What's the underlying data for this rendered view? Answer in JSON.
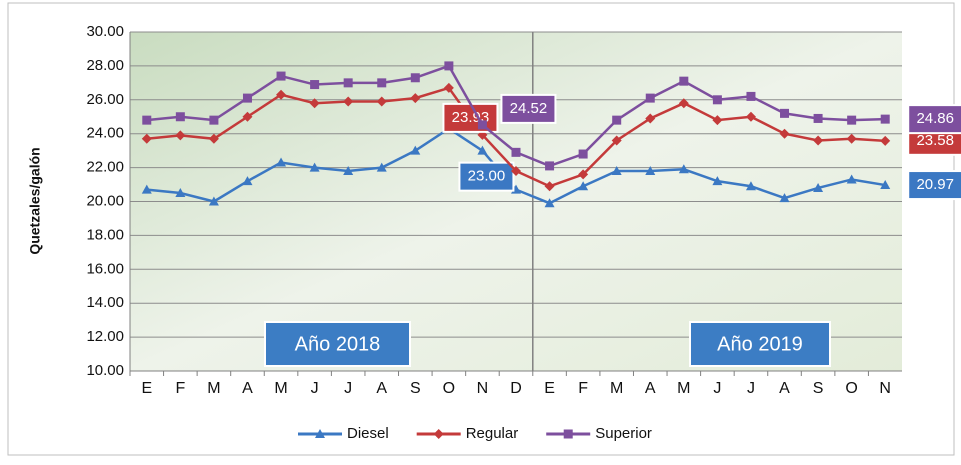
{
  "chart_data": {
    "type": "line",
    "y_label": "Quetzales/galón",
    "categories": [
      "E",
      "F",
      "M",
      "A",
      "M",
      "J",
      "J",
      "A",
      "S",
      "O",
      "N",
      "D",
      "E",
      "F",
      "M",
      "A",
      "M",
      "J",
      "J",
      "A",
      "S",
      "O",
      "N"
    ],
    "series": [
      {
        "name": "Diesel",
        "color": "#3b78c3",
        "marker": "triangle",
        "values": [
          20.7,
          20.5,
          20.0,
          21.2,
          22.3,
          22.0,
          21.8,
          22.0,
          23.0,
          24.3,
          23.0,
          20.7,
          19.9,
          20.9,
          21.8,
          21.8,
          21.9,
          21.2,
          20.9,
          20.2,
          20.8,
          21.3,
          20.97
        ],
        "value_labels": [
          null,
          null,
          null,
          null,
          null,
          null,
          null,
          null,
          null,
          null,
          "23.00",
          null,
          null,
          null,
          null,
          null,
          null,
          null,
          null,
          null,
          null,
          null,
          "20.97"
        ]
      },
      {
        "name": "Regular",
        "color": "#c43a3a",
        "marker": "diamond",
        "values": [
          23.7,
          23.9,
          23.7,
          25.0,
          26.3,
          25.8,
          25.9,
          25.9,
          26.1,
          26.7,
          23.93,
          21.8,
          20.9,
          21.6,
          23.6,
          24.9,
          25.8,
          24.8,
          25.0,
          24.0,
          23.6,
          23.7,
          23.58
        ],
        "value_labels": [
          null,
          null,
          null,
          null,
          null,
          null,
          null,
          null,
          null,
          null,
          "23.93",
          null,
          null,
          null,
          null,
          null,
          null,
          null,
          null,
          null,
          null,
          null,
          "23.58"
        ]
      },
      {
        "name": "Superior",
        "color": "#7d4f9e",
        "marker": "square",
        "values": [
          24.8,
          25.0,
          24.8,
          26.1,
          27.4,
          26.9,
          27.0,
          27.0,
          27.3,
          28.0,
          24.52,
          22.9,
          22.1,
          22.8,
          24.8,
          26.1,
          27.1,
          26.0,
          26.2,
          25.2,
          24.9,
          24.8,
          24.86
        ],
        "value_labels": [
          null,
          null,
          null,
          null,
          null,
          null,
          null,
          null,
          null,
          null,
          "24.52",
          null,
          null,
          null,
          null,
          null,
          null,
          null,
          null,
          null,
          null,
          null,
          "24.86"
        ]
      }
    ],
    "annotations": [
      "Año 2018",
      "Año 2019"
    ],
    "ylim": [
      10,
      30
    ],
    "yticks": [
      {
        "value": 10,
        "label": "10.00"
      },
      {
        "value": 12,
        "label": "12.00"
      },
      {
        "value": 14,
        "label": "14.00"
      },
      {
        "value": 16,
        "label": "16.00"
      },
      {
        "value": 18,
        "label": "18.00"
      },
      {
        "value": 20,
        "label": "20.00"
      },
      {
        "value": 22,
        "label": "22.00"
      },
      {
        "value": 24,
        "label": "24.00"
      },
      {
        "value": 26,
        "label": "26.00"
      },
      {
        "value": 28,
        "label": "28.00"
      },
      {
        "value": 30,
        "label": "30.00"
      }
    ],
    "grid": true,
    "legend": "bottom"
  }
}
